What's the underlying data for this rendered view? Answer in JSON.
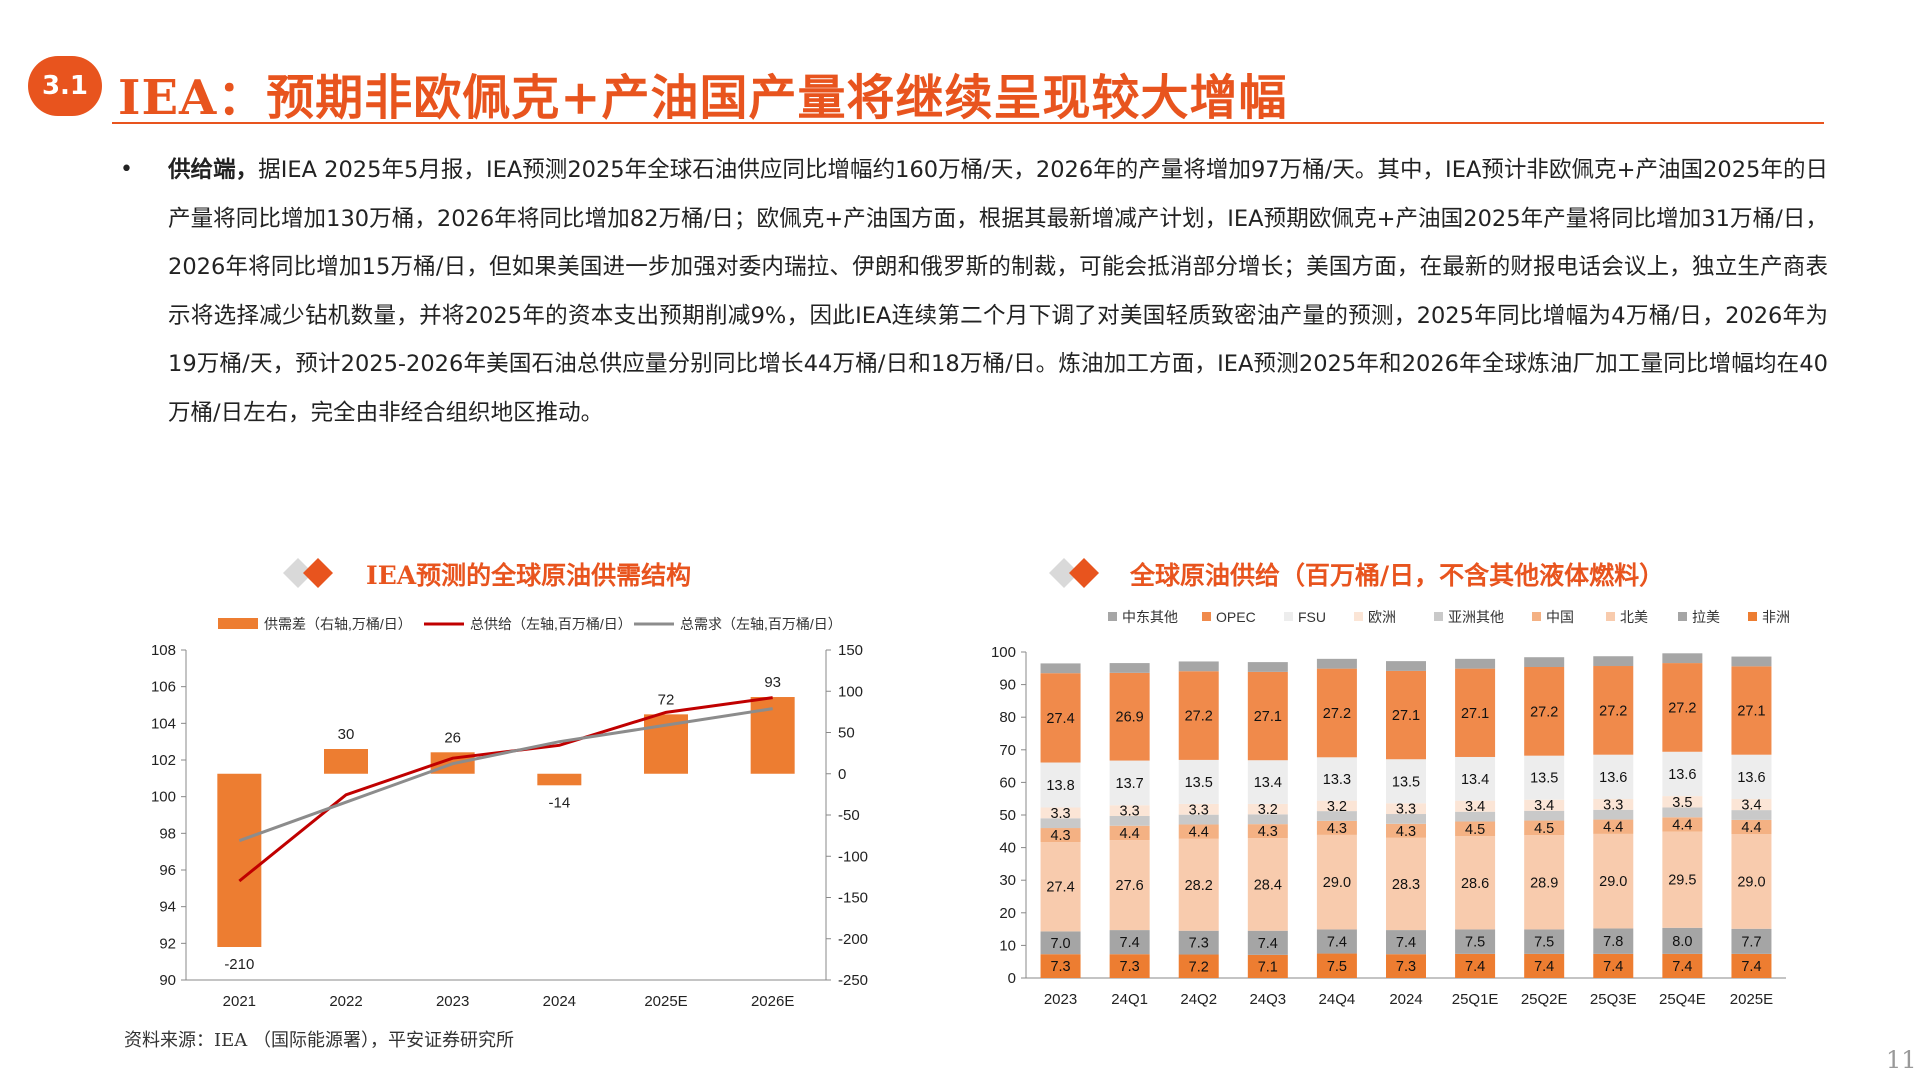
{
  "header": {
    "section_number": "3.1",
    "title": "IEA：预期非欧佩克+产油国产量将继续呈现较大增幅"
  },
  "bullet": {
    "lead": "供给端，",
    "body": "据IEA 2025年5月报，IEA预测2025年全球石油供应同比增幅约160万桶/天，2026年的产量将增加97万桶/天。其中，IEA预计非欧佩克+产油国2025年的日产量将同比增加130万桶，2026年将同比增加82万桶/日；欧佩克+产油国方面，根据其最新增减产计划，IEA预期欧佩克+产油国2025年产量将同比增加31万桶/日，2026年将同比增加15万桶/日，但如果美国进一步加强对委内瑞拉、伊朗和俄罗斯的制裁，可能会抵消部分增长；美国方面，在最新的财报电话会议上，独立生产商表示将选择减少钻机数量，并将2025年的资本支出预期削减9%，因此IEA连续第二个月下调了对美国轻质致密油产量的预测，2025年同比增幅为4万桶/日，2026年为19万桶/天，预计2025-2026年美国石油总供应量分别同比增长44万桶/日和18万桶/日。炼油加工方面，IEA预测2025年和2026年全球炼油厂加工量同比增幅均在40万桶/日左右，完全由非经合组织地区推动。"
  },
  "footer": {
    "source": "资料来源：IEA （国际能源署），平安证券研究所",
    "page": "11"
  },
  "colors": {
    "accent": "#e8541e",
    "bar_orange": "#ed7d31",
    "line_red": "#c00000",
    "line_gray": "#8c8c8c"
  },
  "chart_data": [
    {
      "type": "bar",
      "title": "IEA预测的全球原油供需结构",
      "categories": [
        "2021",
        "2022",
        "2023",
        "2024",
        "2025E",
        "2026E"
      ],
      "y_left": {
        "ylim": [
          90,
          108
        ],
        "ticks": [
          90,
          92,
          94,
          96,
          98,
          100,
          102,
          104,
          106,
          108
        ]
      },
      "y_right": {
        "ylim": [
          -250,
          150
        ],
        "ticks": [
          -250,
          -200,
          -150,
          -100,
          -50,
          0,
          50,
          100,
          150
        ]
      },
      "series": [
        {
          "name": "供需差（右轴,万桶/日）",
          "type": "bar",
          "axis": "right",
          "color": "#ed7d31",
          "values": [
            -210,
            30,
            26,
            -14,
            72,
            93
          ]
        },
        {
          "name": "总供给（左轴,百万桶/日）",
          "type": "line",
          "axis": "left",
          "color": "#c00000",
          "values": [
            95.4,
            100.1,
            102.1,
            102.8,
            104.6,
            105.4
          ]
        },
        {
          "name": "总需求（左轴,百万桶/日）",
          "type": "line",
          "axis": "left",
          "color": "#8c8c8c",
          "values": [
            97.6,
            99.7,
            101.8,
            103.0,
            103.9,
            104.8
          ]
        }
      ]
    },
    {
      "type": "bar",
      "stacked": true,
      "title": "全球原油供给（百万桶/日，不含其他液体燃料）",
      "categories": [
        "2023",
        "24Q1",
        "24Q2",
        "24Q3",
        "24Q4",
        "2024",
        "25Q1E",
        "25Q2E",
        "25Q3E",
        "25Q4E",
        "2025E"
      ],
      "ylim": [
        0,
        100
      ],
      "yticks": [
        0,
        10,
        20,
        30,
        40,
        50,
        60,
        70,
        80,
        90,
        100
      ],
      "legend_order": [
        "中东其他",
        "OPEC",
        "FSU",
        "欧洲",
        "亚洲其他",
        "中国",
        "北美",
        "拉美",
        "非洲"
      ],
      "series": [
        {
          "name": "非洲",
          "color": "#ed7d31",
          "labeled": true,
          "values": [
            7.3,
            7.3,
            7.2,
            7.1,
            7.5,
            7.3,
            7.4,
            7.4,
            7.4,
            7.4,
            7.4
          ]
        },
        {
          "name": "拉美",
          "color": "#a5a5a5",
          "labeled": true,
          "values": [
            7.0,
            7.4,
            7.3,
            7.4,
            7.4,
            7.4,
            7.5,
            7.5,
            7.8,
            8.0,
            7.7
          ]
        },
        {
          "name": "北美",
          "color": "#f8cbad",
          "labeled": true,
          "values": [
            27.4,
            27.6,
            28.2,
            28.4,
            29.0,
            28.3,
            28.6,
            28.9,
            29.0,
            29.5,
            29.0
          ]
        },
        {
          "name": "中国",
          "color": "#f4b183",
          "labeled": true,
          "values": [
            4.3,
            4.4,
            4.4,
            4.3,
            4.3,
            4.3,
            4.5,
            4.5,
            4.4,
            4.4,
            4.4
          ]
        },
        {
          "name": "亚洲其他",
          "color": "#c9c9c9",
          "labeled": false,
          "values": [
            3.0,
            3.0,
            3.0,
            3.0,
            3.0,
            3.0,
            3.0,
            3.0,
            3.0,
            3.0,
            3.0
          ]
        },
        {
          "name": "欧洲",
          "color": "#fbe5d6",
          "labeled": true,
          "values": [
            3.3,
            3.3,
            3.3,
            3.2,
            3.2,
            3.3,
            3.4,
            3.4,
            3.3,
            3.5,
            3.4
          ]
        },
        {
          "name": "FSU",
          "color": "#ededed",
          "labeled": true,
          "values": [
            13.8,
            13.7,
            13.5,
            13.4,
            13.3,
            13.5,
            13.4,
            13.5,
            13.6,
            13.6,
            13.6
          ]
        },
        {
          "name": "OPEC",
          "color": "#f08a4b",
          "labeled": true,
          "values": [
            27.4,
            26.9,
            27.2,
            27.1,
            27.2,
            27.1,
            27.1,
            27.2,
            27.2,
            27.2,
            27.1
          ]
        },
        {
          "name": "中东其他",
          "color": "#a6a6a6",
          "labeled": false,
          "values": [
            3.0,
            3.0,
            3.0,
            3.0,
            3.0,
            3.0,
            3.0,
            3.0,
            3.0,
            3.0,
            3.0
          ]
        }
      ]
    }
  ]
}
